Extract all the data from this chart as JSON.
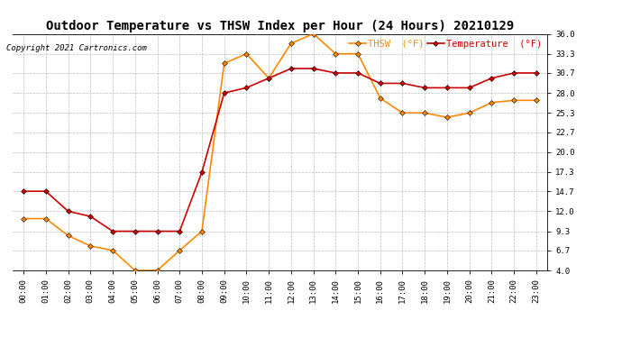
{
  "title": "Outdoor Temperature vs THSW Index per Hour (24 Hours) 20210129",
  "copyright": "Copyright 2021 Cartronics.com",
  "legend_thsw": "THSW  (°F)",
  "legend_temp": "Temperature  (°F)",
  "hours": [
    "00:00",
    "01:00",
    "02:00",
    "03:00",
    "04:00",
    "05:00",
    "06:00",
    "07:00",
    "08:00",
    "09:00",
    "10:00",
    "11:00",
    "12:00",
    "13:00",
    "14:00",
    "15:00",
    "16:00",
    "17:00",
    "18:00",
    "19:00",
    "20:00",
    "21:00",
    "22:00",
    "23:00"
  ],
  "temperature": [
    14.7,
    14.7,
    12.0,
    11.3,
    9.3,
    9.3,
    9.3,
    9.3,
    17.3,
    28.0,
    28.7,
    30.0,
    31.3,
    31.3,
    30.7,
    30.7,
    29.3,
    29.3,
    28.7,
    28.7,
    28.7,
    30.0,
    30.7,
    30.7
  ],
  "thsw": [
    11.0,
    11.0,
    8.7,
    7.3,
    6.7,
    4.0,
    4.0,
    6.7,
    9.3,
    32.0,
    33.3,
    30.0,
    34.7,
    36.0,
    33.3,
    33.3,
    27.3,
    25.3,
    25.3,
    24.7,
    25.3,
    26.7,
    27.0,
    27.0
  ],
  "temp_color": "#cc0000",
  "thsw_color": "#ff8800",
  "background_color": "#ffffff",
  "grid_color": "#bbbbbb",
  "ylim": [
    4.0,
    36.0
  ],
  "yticks": [
    4.0,
    6.7,
    9.3,
    12.0,
    14.7,
    17.3,
    20.0,
    22.7,
    25.3,
    28.0,
    30.7,
    33.3,
    36.0
  ],
  "title_fontsize": 10,
  "copyright_fontsize": 6.5,
  "legend_fontsize": 7.5,
  "tick_fontsize": 6.5,
  "marker_size": 3,
  "linewidth": 1.2
}
